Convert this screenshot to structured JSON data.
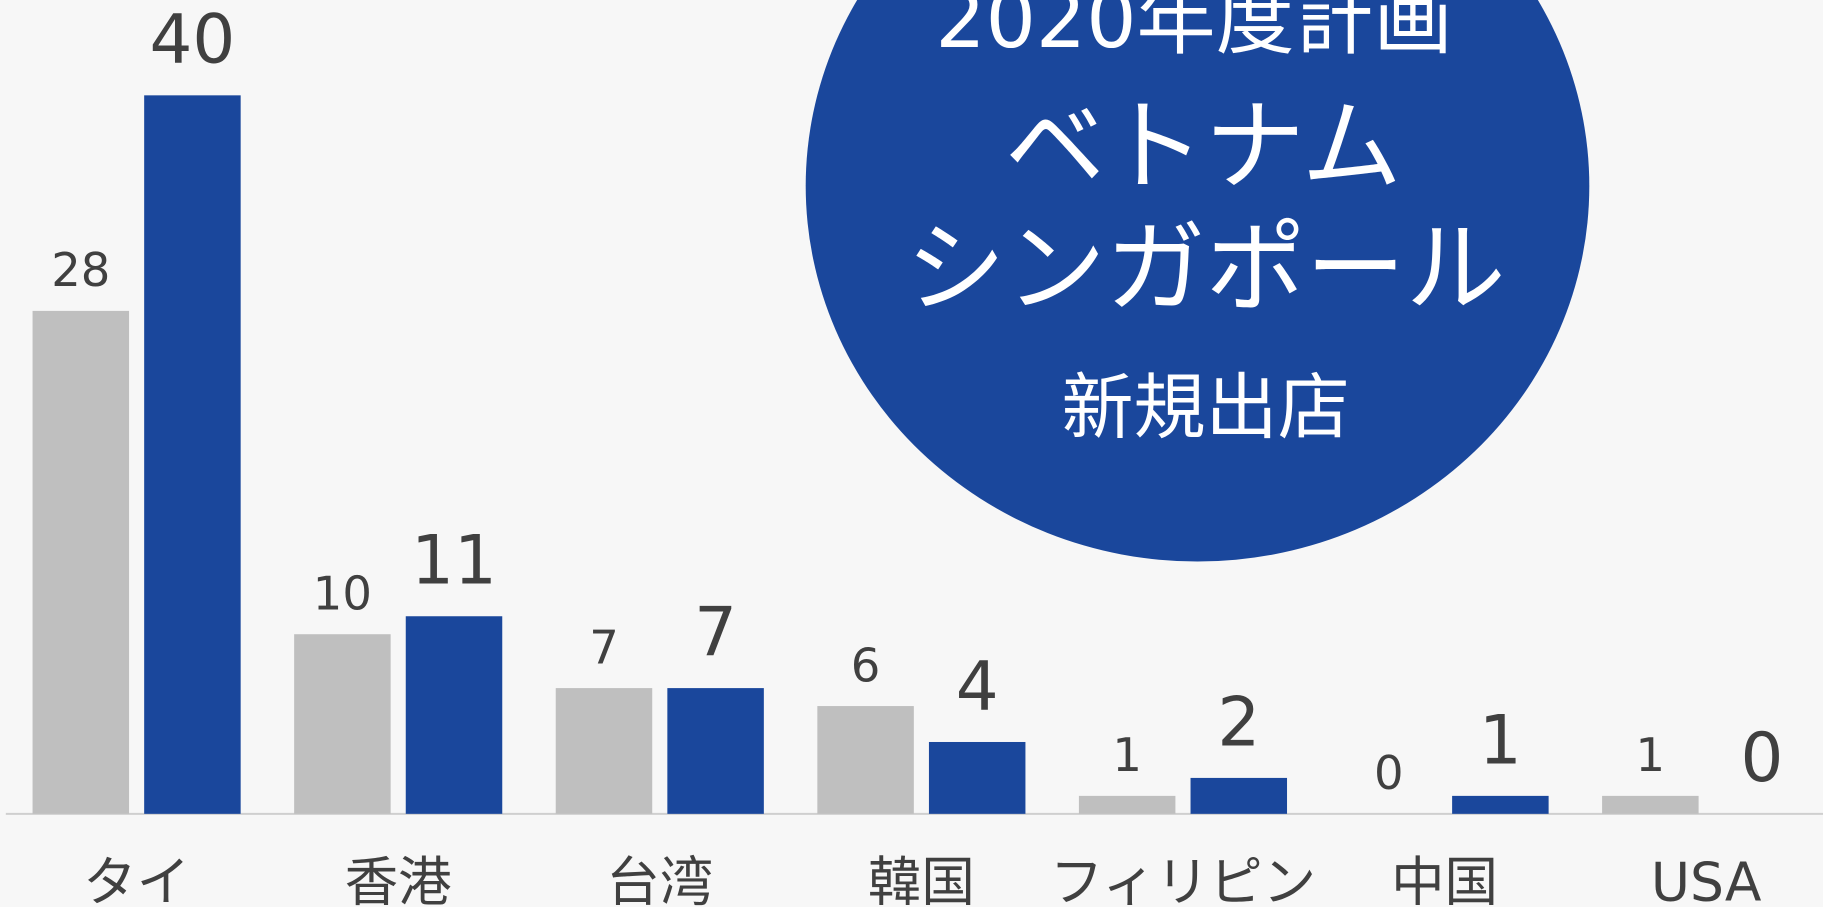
{
  "chart_data": {
    "type": "bar",
    "categories": [
      "タイ",
      "香港",
      "台湾",
      "韓国",
      "フィリピン",
      "中国",
      "USA"
    ],
    "series": [
      {
        "color": "#bfbfbf",
        "values": [
          28,
          10,
          7,
          6,
          1,
          0,
          1
        ]
      },
      {
        "color": "#1a479c",
        "values": [
          40,
          11,
          7,
          4,
          2,
          1,
          0
        ]
      }
    ],
    "ylim": [
      0,
      40
    ],
    "annotations": [
      "2020年度計画",
      "ベトナム",
      "シンガポール",
      "新規出店"
    ]
  }
}
